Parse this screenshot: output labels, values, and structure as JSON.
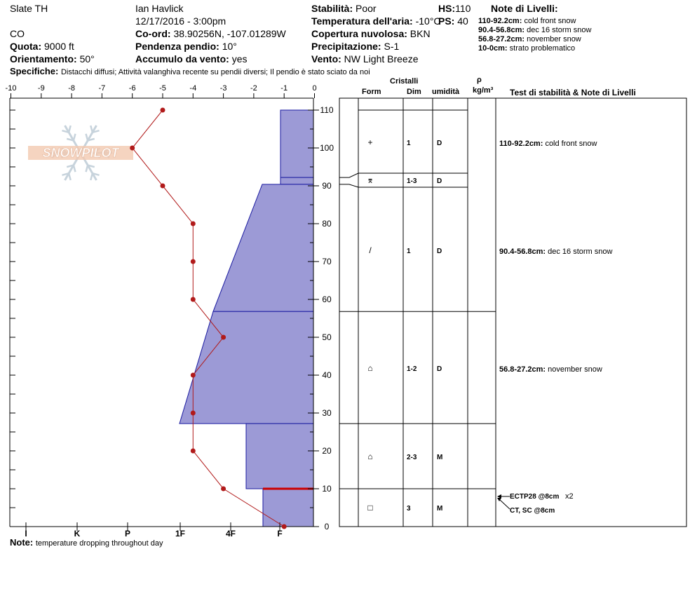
{
  "header": {
    "location": "Slate TH",
    "state": "CO",
    "observer": "Ian Havlick",
    "datetime": "12/17/2016 - 3:00pm",
    "elevation_label": "Quota:",
    "elevation": "9000 ft",
    "aspect_label": "Orientamento:",
    "aspect": "50°",
    "coords_label": "Co-ord:",
    "coords": "38.90256N, -107.01289W",
    "slope_label": "Pendenza pendio:",
    "slope": "10°",
    "wind_loading_label": "Accumulo da vento:",
    "wind_loading": "yes",
    "stability_label": "Stabilità:",
    "stability": "Poor",
    "air_temp_label": "Temperatura dell'aria:",
    "air_temp": "-10°C",
    "sky_label": "Copertura nuvolosa:",
    "sky": "BKN",
    "precip_label": "Precipitazione:",
    "precip": "S-1",
    "wind_label": "Vento:",
    "wind": "NW Light Breeze",
    "hs_label": "HS:",
    "hs": "110",
    "ps_label": "PS:",
    "ps": "40",
    "specifics_label": "Specifiche:",
    "specifics": "Distacchi diffusi; Attività valanghiva recente su pendii diversi; Il pendio è stato sciato da noi",
    "layer_notes_title": "Note di Livelli:",
    "layer_notes": [
      {
        "range": "110-92.2cm:",
        "text": "cold front snow"
      },
      {
        "range": "90.4-56.8cm:",
        "text": "dec 16 storm snow"
      },
      {
        "range": "56.8-27.2cm:",
        "text": "november snow"
      },
      {
        "range": "10-0cm:",
        "text": "strato problematico"
      }
    ]
  },
  "table_headers": {
    "crystals": "Cristalli",
    "form": "Form",
    "size": "Dim",
    "moisture": "umidità",
    "density": "ρ",
    "density_unit": "kg/m³",
    "tests": "Test di stabilità & Note di Livelli"
  },
  "watermark": "SNOWPILOT",
  "note_label": "Note:",
  "note": "temperature dropping throughout day",
  "chart_data": {
    "type": "snow-profile",
    "temp_axis": {
      "ticks": [
        -10,
        -9,
        -8,
        -7,
        -6,
        -5,
        -4,
        -3,
        -2,
        -1,
        0
      ],
      "range": [
        -10,
        0
      ]
    },
    "hardness_axis": {
      "ticks": [
        "I",
        "K",
        "P",
        "1F",
        "4F",
        "F"
      ]
    },
    "height_axis": {
      "ticks": [
        0,
        10,
        20,
        30,
        40,
        50,
        60,
        70,
        80,
        90,
        100,
        110
      ],
      "range": [
        0,
        110
      ]
    },
    "temperature_profile": [
      {
        "h": 110,
        "t": -5
      },
      {
        "h": 100,
        "t": -6
      },
      {
        "h": 90,
        "t": -5
      },
      {
        "h": 80,
        "t": -4
      },
      {
        "h": 70,
        "t": -4
      },
      {
        "h": 60,
        "t": -4
      },
      {
        "h": 50,
        "t": -3
      },
      {
        "h": 40,
        "t": -4
      },
      {
        "h": 30,
        "t": -4
      },
      {
        "h": 20,
        "t": -4
      },
      {
        "h": 10,
        "t": -3
      },
      {
        "h": 0,
        "t": -1
      }
    ],
    "layers": [
      {
        "top": 110,
        "bottom": 92.2,
        "hardness_top": "F",
        "hardness_bottom": "F",
        "form": "+",
        "size": "1",
        "moisture": "D"
      },
      {
        "top": 92.2,
        "bottom": 90.4,
        "hardness_top": "F",
        "hardness_bottom": "F",
        "form": "⌆",
        "size": "1-3",
        "moisture": "D"
      },
      {
        "top": 90.4,
        "bottom": 56.8,
        "hardness_top": "4F+",
        "hardness_bottom": "1F+",
        "form": "/",
        "size": "1",
        "moisture": "D"
      },
      {
        "top": 56.8,
        "bottom": 27.2,
        "hardness_top": "1F+",
        "hardness_bottom": "P",
        "form": "⌂",
        "size": "1-2",
        "moisture": "D"
      },
      {
        "top": 27.2,
        "bottom": 10,
        "hardness_top": "4F",
        "hardness_bottom": "4F",
        "form": "⌂",
        "size": "2-3",
        "moisture": "M"
      },
      {
        "top": 10,
        "bottom": 0,
        "hardness_top": "4F-",
        "hardness_bottom": "4F-",
        "form": "□",
        "size": "3",
        "moisture": "M"
      }
    ],
    "problem_layer_height": 10,
    "tests": [
      {
        "height": 8,
        "label": "ECTP28 @8cm",
        "count": "x2"
      },
      {
        "height": 8,
        "label": "CT, SC @8cm",
        "count": ""
      }
    ]
  }
}
